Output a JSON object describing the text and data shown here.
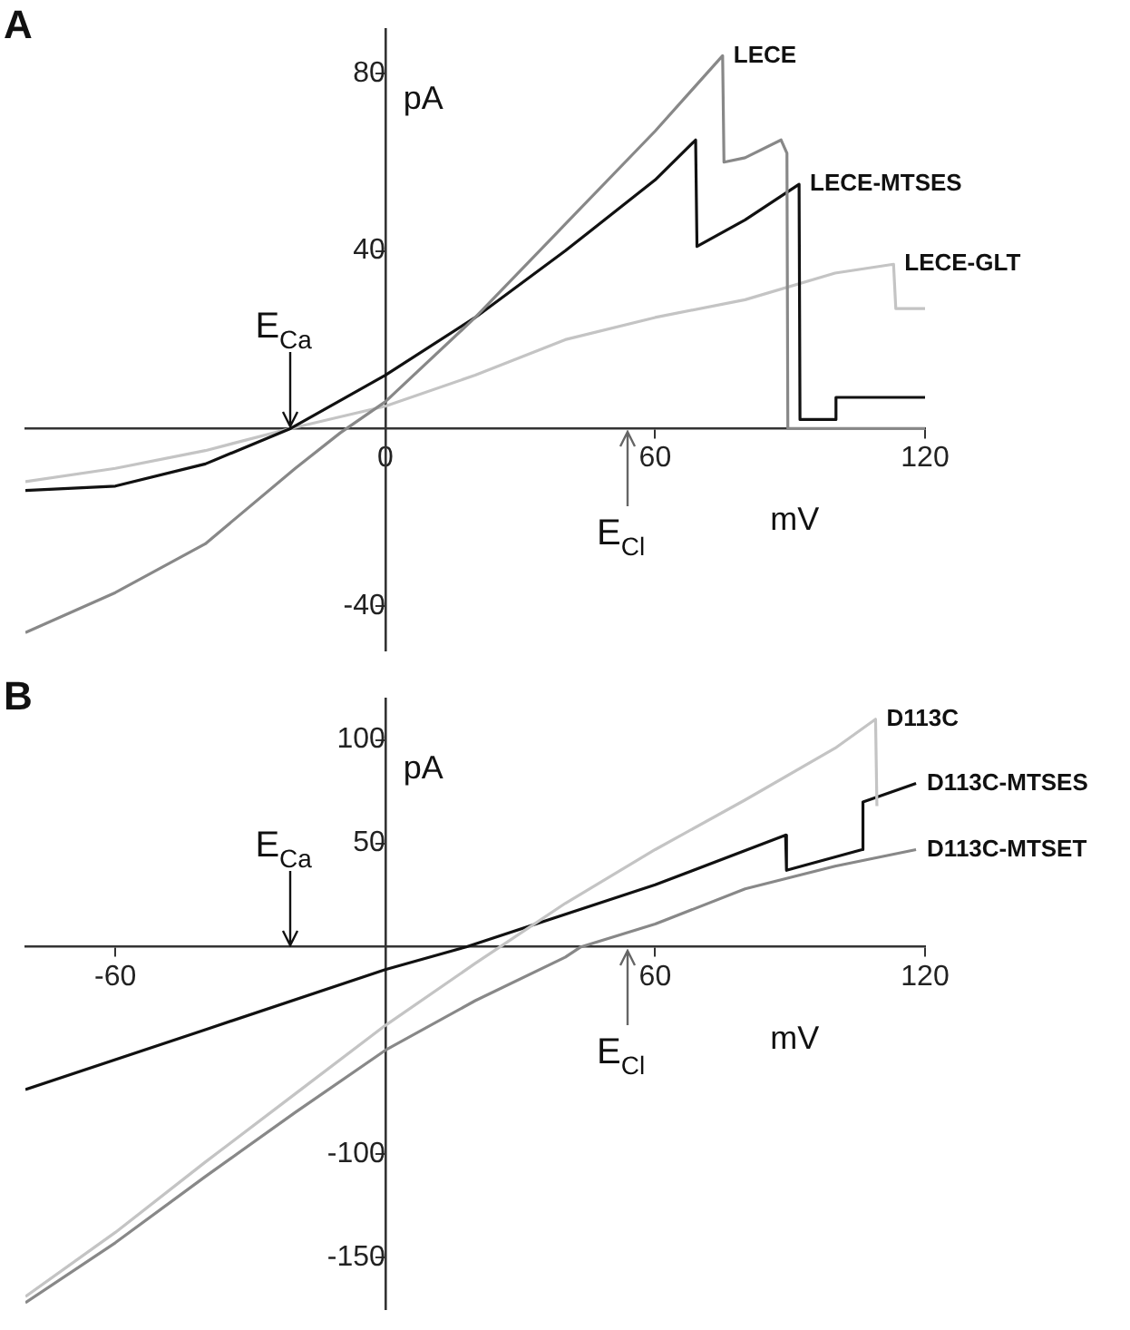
{
  "chart_data": [
    {
      "type": "line",
      "title": "A",
      "xlabel": "mV",
      "ylabel": "pA",
      "xlim": [
        -80,
        120
      ],
      "ylim": [
        -50,
        90
      ],
      "xticks": [
        0,
        60,
        120
      ],
      "yticks": [
        -40,
        40,
        80
      ],
      "grid": false,
      "ref_lines": [
        {
          "axis": "x",
          "value": -21,
          "label": "E$_{Ca}$"
        },
        {
          "axis": "x",
          "value": 54,
          "label": "E$_{Cl}$"
        }
      ],
      "series": [
        {
          "name": "LECE",
          "color": "#888888",
          "x": [
            -80,
            -60,
            -40,
            -20,
            -10,
            0,
            20,
            40,
            60,
            75,
            75.3,
            80,
            88,
            89.3,
            89.5,
            100,
            120
          ],
          "values": [
            -46,
            -37,
            -26,
            -9,
            -1,
            6,
            25,
            46,
            67,
            84,
            60,
            61,
            65,
            62,
            0,
            0,
            0
          ]
        },
        {
          "name": "LECE-MTSES",
          "color": "#111111",
          "x": [
            -80,
            -60,
            -40,
            -21,
            0,
            20,
            40,
            60,
            69,
            69.3,
            80,
            92,
            92.2,
            100,
            100.2,
            120
          ],
          "values": [
            -14,
            -13,
            -8,
            0,
            12,
            25,
            40,
            56,
            65,
            41,
            47,
            55,
            2,
            2,
            7,
            7
          ]
        },
        {
          "name": "LECE-GLT",
          "color": "#c4c4c4",
          "x": [
            -80,
            -60,
            -40,
            -21,
            0,
            20,
            40,
            60,
            80,
            100,
            113,
            113.5,
            120
          ],
          "values": [
            -12,
            -9,
            -5,
            0,
            5,
            12,
            20,
            25,
            29,
            35,
            37,
            27,
            27
          ]
        }
      ]
    },
    {
      "type": "line",
      "title": "B",
      "xlabel": "mV",
      "ylabel": "pA",
      "xlim": [
        -80,
        120
      ],
      "ylim": [
        -175,
        120
      ],
      "xticks": [
        -60,
        60,
        120
      ],
      "yticks": [
        -150,
        -100,
        50,
        100
      ],
      "grid": false,
      "ref_lines": [
        {
          "axis": "x",
          "value": -21,
          "label": "E$_{Ca}$"
        },
        {
          "axis": "x",
          "value": 54,
          "label": "E$_{Cl}$"
        }
      ],
      "series": [
        {
          "name": "D113C",
          "color": "#c4c4c4",
          "x": [
            -80,
            -60,
            -40,
            -20,
            0,
            20,
            40,
            60,
            80,
            100,
            109,
            109.3
          ],
          "values": [
            -169,
            -138,
            -104,
            -71,
            -38,
            -8,
            21,
            47,
            71,
            96,
            110,
            68
          ]
        },
        {
          "name": "D113C-MTSES",
          "color": "#111111",
          "x": [
            -80,
            -40,
            0,
            18,
            60,
            89,
            89.2,
            106,
            106.2,
            118
          ],
          "values": [
            -69,
            -40,
            -11,
            0,
            30,
            54,
            37,
            47,
            70,
            79
          ]
        },
        {
          "name": "D113C-MTSET",
          "color": "#888888",
          "x": [
            -80,
            -60,
            -40,
            -20,
            0,
            20,
            40,
            43.5,
            60,
            80,
            100,
            118
          ],
          "values": [
            -172,
            -143,
            -111,
            -80,
            -50,
            -26,
            -5,
            0,
            11,
            28,
            39,
            47
          ]
        }
      ]
    }
  ]
}
